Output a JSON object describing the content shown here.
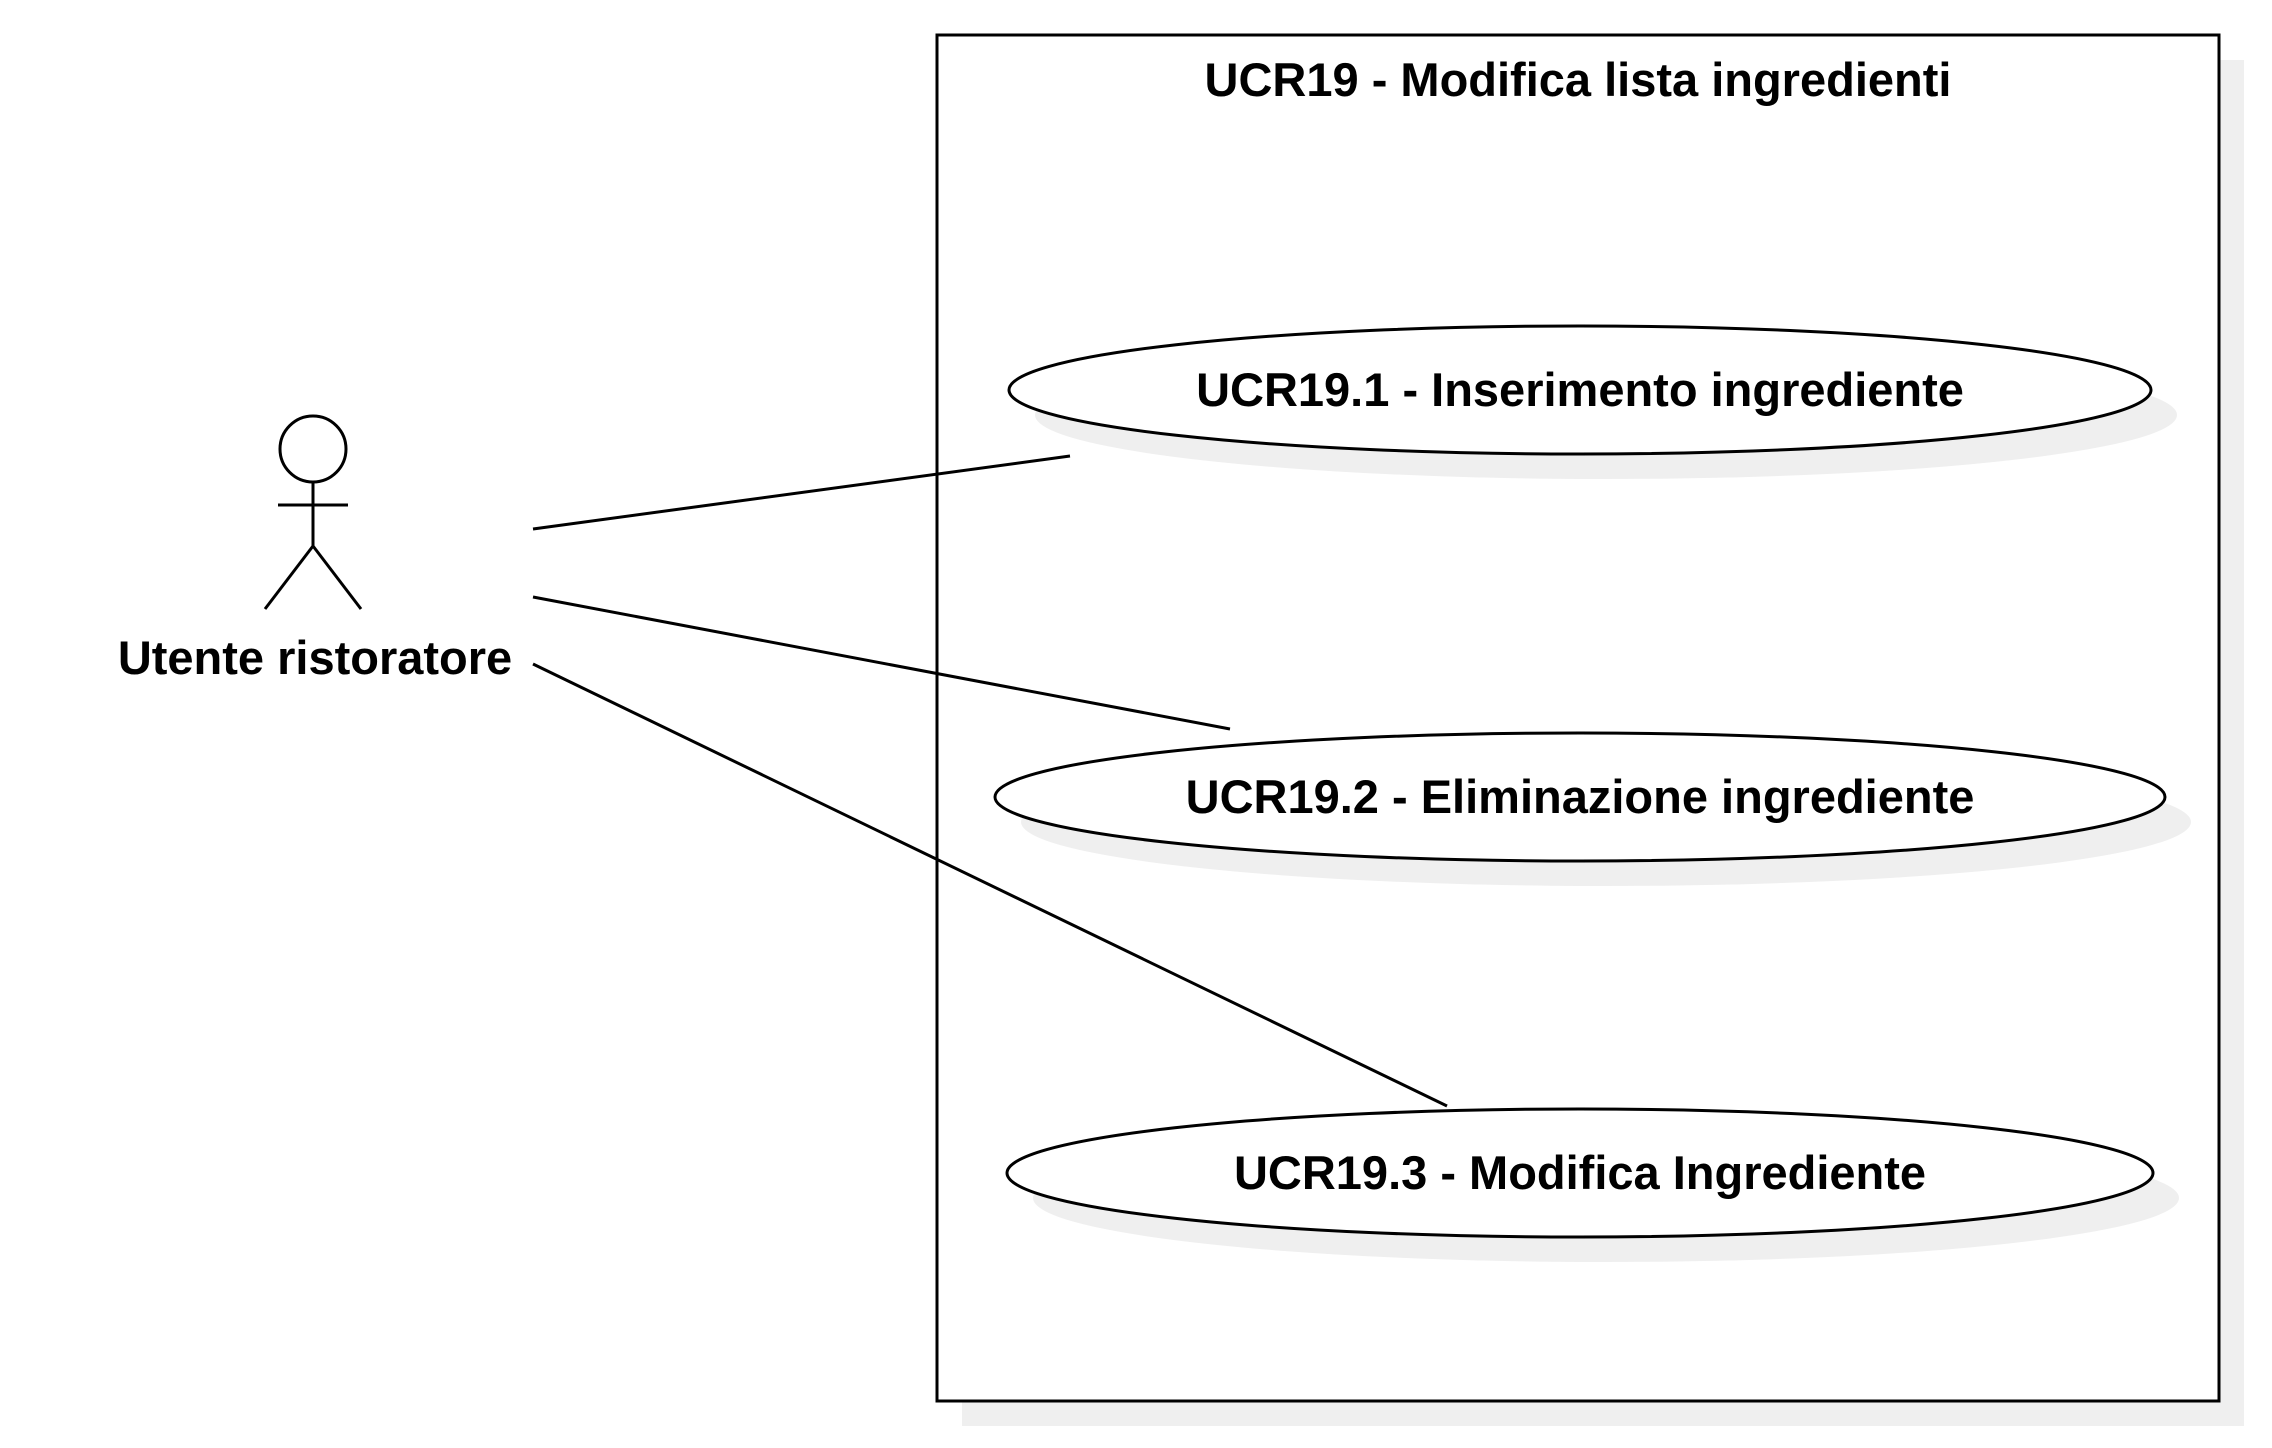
{
  "system": {
    "title": "UCR19 - Modifica lista ingredienti"
  },
  "actor": {
    "name": "Utente ristoratore"
  },
  "use_cases": [
    {
      "label": "UCR19.1 - Inserimento ingrediente"
    },
    {
      "label": "UCR19.2 - Eliminazione ingrediente"
    },
    {
      "label": "UCR19.3 - Modifica Ingrediente"
    }
  ],
  "colors": {
    "line": "#000000",
    "shadow": "#efefef",
    "background": "#ffffff"
  }
}
